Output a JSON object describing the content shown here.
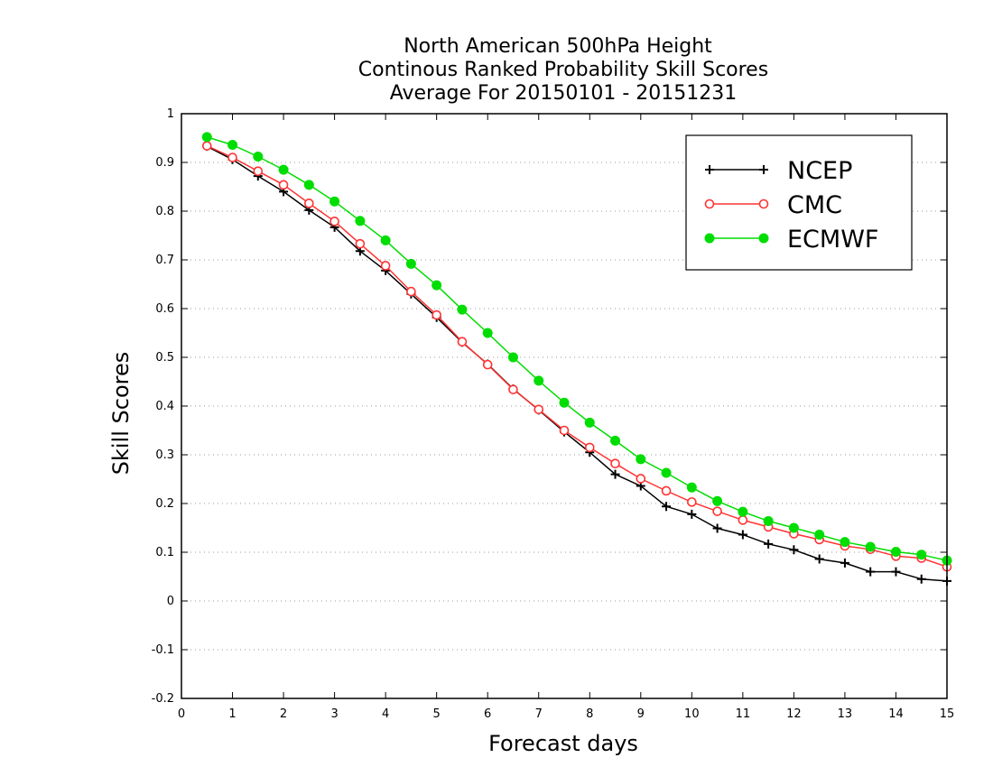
{
  "chart_data": {
    "type": "line",
    "title": [
      "North American 500hPa Height",
      "Continous Ranked Probability Skill Scores",
      "Average For 20150101 - 20151231"
    ],
    "xlabel": "Forecast days",
    "ylabel": "Skill Scores",
    "xlim": [
      0,
      15
    ],
    "ylim": [
      -0.2,
      1
    ],
    "xticks": [
      "0",
      "1",
      "2",
      "3",
      "4",
      "5",
      "6",
      "7",
      "8",
      "9",
      "10",
      "11",
      "12",
      "13",
      "14",
      "15"
    ],
    "yticks": [
      "1",
      "0.9",
      "0.8",
      "0.7",
      "0.6",
      "0.5",
      "0.4",
      "0.3",
      "0.2",
      "0.1",
      "0",
      "-0.1",
      "-0.2"
    ],
    "grid": "horizontal dotted",
    "legend_position": "top-right",
    "x": [
      0.5,
      1,
      1.5,
      2,
      2.5,
      3,
      3.5,
      4,
      4.5,
      5,
      5.5,
      6,
      6.5,
      7,
      7.5,
      8,
      8.5,
      9,
      9.5,
      10,
      10.5,
      11,
      11.5,
      12,
      12.5,
      13,
      13.5,
      14,
      14.5,
      15
    ],
    "series": [
      {
        "name": "NCEP",
        "color": "#000000",
        "marker": "plus",
        "values": [
          0.933,
          0.906,
          0.872,
          0.84,
          0.802,
          0.767,
          0.718,
          0.678,
          0.63,
          0.582,
          0.531,
          0.486,
          0.435,
          0.392,
          0.347,
          0.305,
          0.26,
          0.236,
          0.194,
          0.178,
          0.149,
          0.136,
          0.117,
          0.105,
          0.086,
          0.078,
          0.06,
          0.06,
          0.045,
          0.041
        ]
      },
      {
        "name": "CMC",
        "color": "#ff3333",
        "marker": "open-circle",
        "values": [
          0.934,
          0.91,
          0.882,
          0.854,
          0.816,
          0.779,
          0.733,
          0.688,
          0.635,
          0.587,
          0.532,
          0.485,
          0.434,
          0.393,
          0.35,
          0.315,
          0.282,
          0.251,
          0.226,
          0.203,
          0.184,
          0.166,
          0.152,
          0.138,
          0.126,
          0.113,
          0.106,
          0.092,
          0.088,
          0.07
        ]
      },
      {
        "name": "ECMWF",
        "color": "#00dd00",
        "marker": "filled-circle",
        "values": [
          0.952,
          0.936,
          0.912,
          0.885,
          0.854,
          0.82,
          0.78,
          0.74,
          0.692,
          0.648,
          0.598,
          0.55,
          0.5,
          0.452,
          0.407,
          0.366,
          0.329,
          0.291,
          0.263,
          0.233,
          0.205,
          0.183,
          0.164,
          0.15,
          0.136,
          0.121,
          0.111,
          0.101,
          0.095,
          0.083
        ]
      }
    ]
  }
}
